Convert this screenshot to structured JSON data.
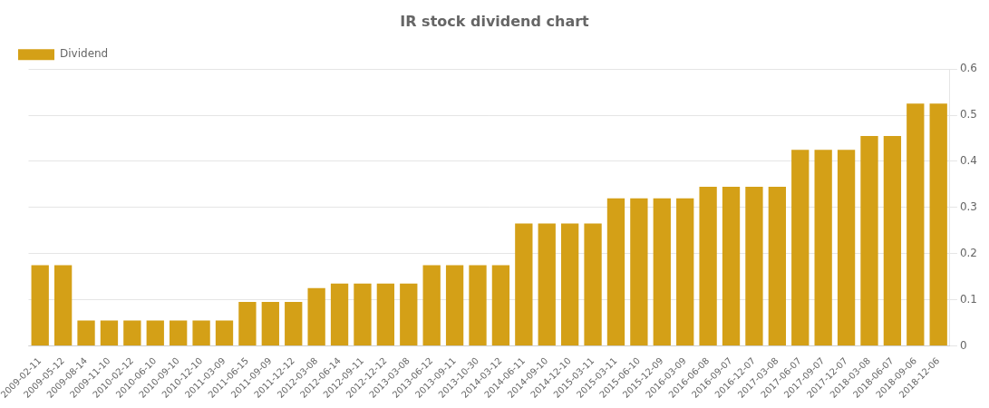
{
  "chart_data": {
    "type": "bar",
    "title": "IR stock dividend chart",
    "categories": [
      "2009-02-11",
      "2009-05-12",
      "2009-08-14",
      "2009-11-10",
      "2010-02-12",
      "2010-06-10",
      "2010-09-10",
      "2010-12-10",
      "2011-03-09",
      "2011-06-15",
      "2011-09-09",
      "2011-12-12",
      "2012-03-08",
      "2012-06-14",
      "2012-09-11",
      "2012-12-12",
      "2013-03-08",
      "2013-06-12",
      "2013-09-11",
      "2013-10-30",
      "2014-03-12",
      "2014-06-11",
      "2014-09-10",
      "2014-12-10",
      "2015-03-11",
      "2015-03-11",
      "2015-06-10",
      "2015-12-09",
      "2016-03-09",
      "2016-06-08",
      "2016-09-07",
      "2016-12-07",
      "2017-03-08",
      "2017-06-07",
      "2017-09-07",
      "2017-12-07",
      "2018-03-08",
      "2018-06-07",
      "2018-09-06",
      "2018-12-06"
    ],
    "series": [
      {
        "name": "Dividend",
        "color": "#D4A017",
        "values": [
          0.175,
          0.175,
          0.055,
          0.055,
          0.055,
          0.055,
          0.055,
          0.055,
          0.055,
          0.095,
          0.095,
          0.095,
          0.125,
          0.135,
          0.135,
          0.135,
          0.135,
          0.175,
          0.175,
          0.175,
          0.175,
          0.265,
          0.265,
          0.265,
          0.265,
          0.32,
          0.32,
          0.32,
          0.32,
          0.345,
          0.345,
          0.345,
          0.345,
          0.425,
          0.425,
          0.425,
          0.455,
          0.455,
          0.525,
          0.525
        ]
      }
    ],
    "ylim": [
      0,
      0.6
    ],
    "yticks": [
      0,
      0.1,
      0.2,
      0.3,
      0.4,
      0.5,
      0.6
    ],
    "grid": true,
    "legend": "upper left"
  }
}
